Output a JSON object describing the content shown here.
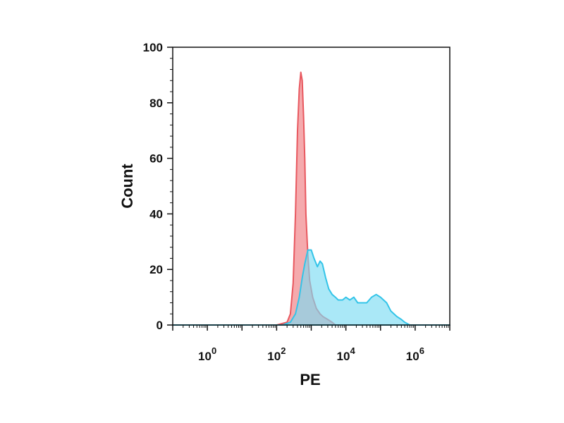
{
  "chart_data": {
    "type": "area",
    "xlabel": "PE",
    "ylabel": "Count",
    "xscale": "log",
    "xlim": [
      0.1,
      10000000
    ],
    "ylim": [
      0,
      100
    ],
    "grid": false,
    "x_ticks": [
      {
        "base": "10",
        "exp": "0",
        "value": 1
      },
      {
        "base": "10",
        "exp": "2",
        "value": 100
      },
      {
        "base": "10",
        "exp": "4",
        "value": 10000
      },
      {
        "base": "10",
        "exp": "6",
        "value": 1000000
      }
    ],
    "y_ticks": [
      "0",
      "20",
      "40",
      "60",
      "80",
      "100"
    ],
    "series": [
      {
        "color": "#e8585f",
        "fill": "#f39b9f",
        "points": [
          [
            0.1,
            0
          ],
          [
            100,
            0
          ],
          [
            200,
            1
          ],
          [
            250,
            4
          ],
          [
            300,
            15
          ],
          [
            350,
            40
          ],
          [
            400,
            70
          ],
          [
            450,
            85
          ],
          [
            500,
            91
          ],
          [
            550,
            88
          ],
          [
            600,
            75
          ],
          [
            650,
            60
          ],
          [
            700,
            40
          ],
          [
            800,
            25
          ],
          [
            900,
            16
          ],
          [
            1100,
            10
          ],
          [
            1400,
            6
          ],
          [
            1800,
            4
          ],
          [
            2200,
            3
          ],
          [
            3000,
            2
          ],
          [
            4000,
            1
          ],
          [
            5000,
            0
          ],
          [
            10000000,
            0
          ]
        ]
      },
      {
        "color": "#33c4e8",
        "fill": "#7ddcf2",
        "points": [
          [
            0.1,
            0
          ],
          [
            150,
            0
          ],
          [
            250,
            1
          ],
          [
            350,
            4
          ],
          [
            450,
            10
          ],
          [
            550,
            17
          ],
          [
            650,
            22
          ],
          [
            800,
            27
          ],
          [
            1000,
            27
          ],
          [
            1200,
            24
          ],
          [
            1500,
            21
          ],
          [
            1800,
            23
          ],
          [
            2100,
            22
          ],
          [
            2600,
            17
          ],
          [
            3200,
            13
          ],
          [
            4000,
            11
          ],
          [
            5000,
            10
          ],
          [
            6000,
            9
          ],
          [
            8000,
            9
          ],
          [
            10000,
            10
          ],
          [
            13000,
            9
          ],
          [
            17000,
            10
          ],
          [
            22000,
            8
          ],
          [
            30000,
            8
          ],
          [
            40000,
            8
          ],
          [
            55000,
            10
          ],
          [
            75000,
            11
          ],
          [
            100000,
            10
          ],
          [
            150000,
            8
          ],
          [
            200000,
            5
          ],
          [
            300000,
            3
          ],
          [
            400000,
            2
          ],
          [
            500000,
            1
          ],
          [
            700000,
            0
          ],
          [
            10000000,
            0
          ]
        ]
      }
    ]
  }
}
